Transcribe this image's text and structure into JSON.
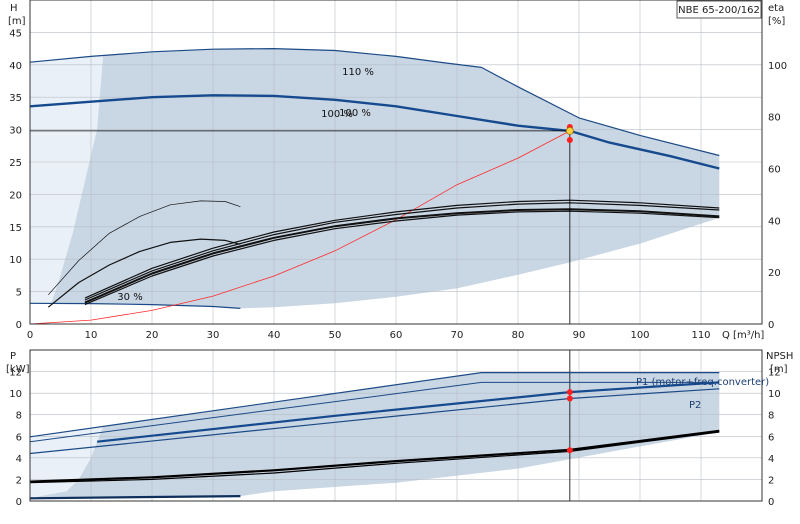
{
  "chart_data": [
    {
      "type": "line",
      "title": "NBE 65-200/162",
      "left_axis_label": "H",
      "left_axis_unit": "[m]",
      "right_axis_label": "eta",
      "right_axis_unit": "[%]",
      "x_axis_label": "Q [m³/h]",
      "xlim": [
        0,
        120
      ],
      "ylim": [
        0,
        50
      ],
      "y2lim": [
        0,
        125
      ],
      "x_ticks": [
        "0",
        "10",
        "20",
        "30",
        "40",
        "50",
        "60",
        "70",
        "80",
        "90",
        "100",
        "110"
      ],
      "y_ticks": [
        "0",
        "5",
        "10",
        "15",
        "20",
        "25",
        "30",
        "35",
        "40",
        "45"
      ],
      "y2_ticks": [
        "0",
        "20",
        "40",
        "60",
        "80",
        "100"
      ],
      "grid": true,
      "operating_point": {
        "x": 88.5,
        "y": 29.8
      },
      "eta_points": [
        {
          "x": 88.5,
          "y2": 76
        },
        {
          "x": 88.5,
          "y2": 71
        }
      ],
      "series": [
        {
          "name": "110 %",
          "points": [
            [
              0,
              40.4
            ],
            [
              10,
              41.3
            ],
            [
              20,
              42.0
            ],
            [
              30,
              42.4
            ],
            [
              40,
              42.5
            ],
            [
              50,
              42.2
            ],
            [
              60,
              41.3
            ],
            [
              68,
              40.3
            ],
            [
              74,
              39.6
            ],
            [
              80,
              36.6
            ],
            [
              90,
              31.8
            ],
            [
              100,
              29.1
            ],
            [
              113,
              26.0
            ]
          ]
        },
        {
          "name": "100 %",
          "points": [
            [
              0,
              33.6
            ],
            [
              10,
              34.3
            ],
            [
              20,
              35.0
            ],
            [
              30,
              35.3
            ],
            [
              40,
              35.2
            ],
            [
              50,
              34.6
            ],
            [
              60,
              33.6
            ],
            [
              70,
              32.1
            ],
            [
              80,
              30.6
            ],
            [
              88.5,
              29.8
            ],
            [
              95,
              28.0
            ],
            [
              105,
              25.9
            ],
            [
              113,
              24.0
            ]
          ]
        },
        {
          "name": "30 %",
          "points": [
            [
              0,
              3.2
            ],
            [
              10,
              3.15
            ],
            [
              20,
              3.0
            ],
            [
              30,
              2.7
            ],
            [
              34.5,
              2.4
            ]
          ]
        },
        {
          "name": "",
          "points": [
            [
              0,
              0
            ],
            [
              10,
              0.6
            ],
            [
              20,
              2.1
            ],
            [
              30,
              4.3
            ],
            [
              40,
              7.4
            ],
            [
              50,
              11.3
            ],
            [
              60,
              16.1
            ],
            [
              70,
              21.5
            ],
            [
              80,
              25.6
            ],
            [
              88.5,
              29.8
            ]
          ]
        },
        {
          "name": "",
          "points": [
            [
              9,
              4.0
            ],
            [
              20,
              8.6
            ],
            [
              30,
              11.7
            ],
            [
              40,
              14.2
            ],
            [
              50,
              16.0
            ],
            [
              60,
              17.3
            ],
            [
              70,
              18.3
            ],
            [
              80,
              18.9
            ],
            [
              88.5,
              19.1
            ],
            [
              100,
              18.7
            ],
            [
              113,
              17.9
            ]
          ]
        },
        {
          "name": "",
          "points": [
            [
              9,
              3.7
            ],
            [
              20,
              8.2
            ],
            [
              30,
              11.3
            ],
            [
              40,
              13.8
            ],
            [
              50,
              15.7
            ],
            [
              60,
              16.9
            ],
            [
              70,
              17.9
            ],
            [
              80,
              18.5
            ],
            [
              88.5,
              18.7
            ],
            [
              100,
              18.3
            ],
            [
              113,
              17.6
            ]
          ]
        },
        {
          "name": "",
          "points": [
            [
              9,
              3.3
            ],
            [
              20,
              7.8
            ],
            [
              30,
              10.9
            ],
            [
              40,
              13.3
            ],
            [
              50,
              15.1
            ],
            [
              60,
              16.3
            ],
            [
              70,
              17.1
            ],
            [
              80,
              17.6
            ],
            [
              88.5,
              17.7
            ],
            [
              100,
              17.4
            ],
            [
              113,
              16.6
            ]
          ]
        },
        {
          "name": "",
          "points": [
            [
              9,
              3.0
            ],
            [
              20,
              7.4
            ],
            [
              30,
              10.5
            ],
            [
              40,
              12.9
            ],
            [
              50,
              14.7
            ],
            [
              60,
              15.9
            ],
            [
              70,
              16.8
            ],
            [
              80,
              17.3
            ],
            [
              88.5,
              17.4
            ],
            [
              100,
              17.1
            ],
            [
              113,
              16.4
            ]
          ]
        },
        {
          "name": "",
          "points": [
            [
              3,
              4.5
            ],
            [
              8,
              9.8
            ],
            [
              13,
              14.0
            ],
            [
              18,
              16.6
            ],
            [
              23,
              18.4
            ],
            [
              28,
              19.0
            ],
            [
              32,
              18.9
            ],
            [
              34.5,
              18.1
            ]
          ]
        },
        {
          "name": "",
          "points": [
            [
              3,
              2.6
            ],
            [
              8,
              6.4
            ],
            [
              13,
              9.1
            ],
            [
              18,
              11.2
            ],
            [
              23,
              12.6
            ],
            [
              28,
              13.1
            ],
            [
              32,
              12.9
            ],
            [
              34.5,
              12.3
            ]
          ]
        }
      ]
    },
    {
      "type": "line",
      "left_axis_label": "P",
      "left_axis_unit": "[kW]",
      "right_axis_label": "NPSH",
      "right_axis_unit": "[m]",
      "xlim": [
        0,
        120
      ],
      "ylim": [
        0,
        14
      ],
      "y2lim": [
        0,
        14
      ],
      "y_ticks": [
        "0",
        "2",
        "4",
        "6",
        "8",
        "10",
        "12"
      ],
      "y2_ticks": [
        "0",
        "2",
        "4",
        "6",
        "8",
        "10",
        "12"
      ],
      "grid": true,
      "power_points": [
        {
          "x": 88.5,
          "y": 10.1
        },
        {
          "x": 88.5,
          "y": 9.5
        }
      ],
      "npsh_point": {
        "x": 88.5,
        "y2": 4.7
      },
      "series": [
        {
          "name": "P1 (motor+freq.converter)",
          "points": [
            [
              0,
              5.95
            ],
            [
              74,
              11.9
            ],
            [
              113,
              11.9
            ]
          ]
        },
        {
          "name": "",
          "points": [
            [
              0,
              5.5
            ],
            [
              74,
              11.0
            ],
            [
              113,
              11.0
            ]
          ]
        },
        {
          "name": "",
          "points": [
            [
              11,
              5.5
            ],
            [
              50,
              7.9
            ],
            [
              88.5,
              10.1
            ],
            [
              113,
              11.0
            ]
          ]
        },
        {
          "name": "P2",
          "points": [
            [
              0,
              4.4
            ],
            [
              50,
              7.3
            ],
            [
              88.5,
              9.5
            ],
            [
              113,
              10.4
            ]
          ]
        },
        {
          "name": "",
          "points": [
            [
              0,
              0.25
            ],
            [
              34.5,
              0.45
            ]
          ]
        },
        {
          "name": "",
          "points": [
            [
              0,
              1.8
            ],
            [
              20,
              2.2
            ],
            [
              40,
              2.85
            ],
            [
              60,
              3.7
            ],
            [
              88.5,
              4.75
            ],
            [
              113,
              6.5
            ]
          ]
        },
        {
          "name": "",
          "points": [
            [
              0,
              1.7
            ],
            [
              20,
              2.0
            ],
            [
              40,
              2.6
            ],
            [
              60,
              3.5
            ],
            [
              88.5,
              4.6
            ],
            [
              113,
              6.4
            ]
          ]
        }
      ]
    }
  ]
}
